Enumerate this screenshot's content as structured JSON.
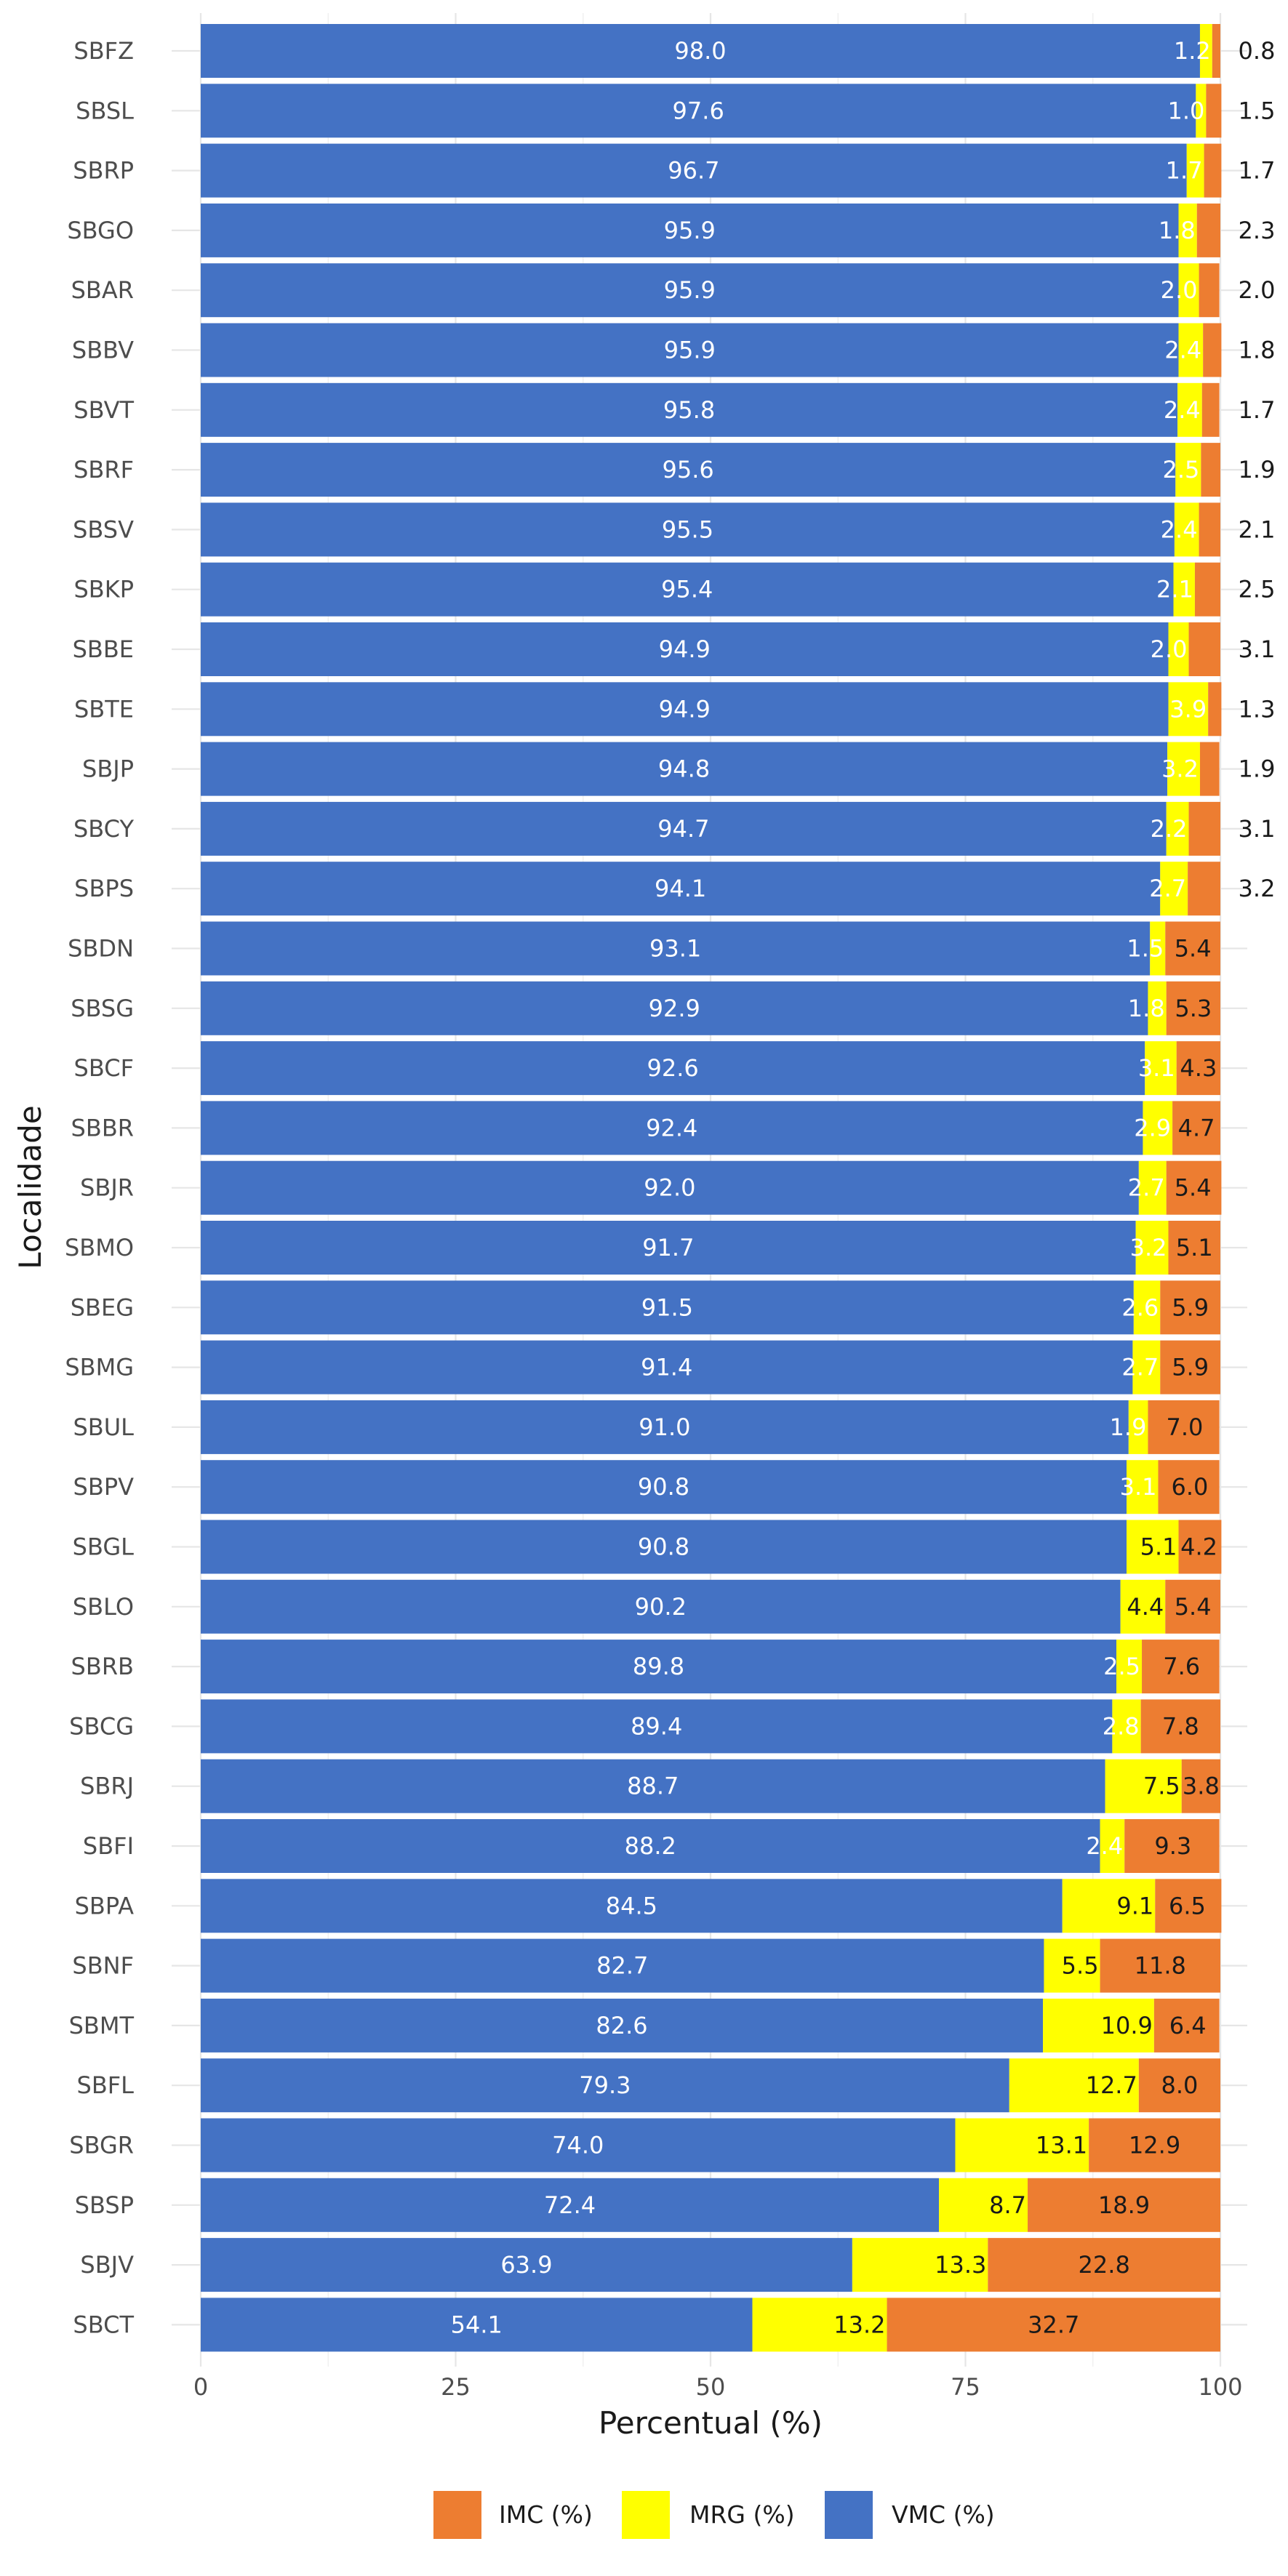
{
  "chart_data": {
    "type": "bar",
    "orientation": "horizontal",
    "stacked": true,
    "title": "",
    "xlabel": "Percentual (%)",
    "ylabel": "Localidade",
    "xlim": [
      0,
      100
    ],
    "xticks": [
      0,
      25,
      50,
      75,
      100
    ],
    "grid": true,
    "legend_position": "bottom",
    "categories": [
      "SBFZ",
      "SBSL",
      "SBRP",
      "SBGO",
      "SBAR",
      "SBBV",
      "SBVT",
      "SBRF",
      "SBSV",
      "SBKP",
      "SBBE",
      "SBTE",
      "SBJP",
      "SBCY",
      "SBPS",
      "SBDN",
      "SBSG",
      "SBCF",
      "SBBR",
      "SBJR",
      "SBMO",
      "SBEG",
      "SBMG",
      "SBUL",
      "SBPV",
      "SBGL",
      "SBLO",
      "SBRB",
      "SBCG",
      "SBRJ",
      "SBFI",
      "SBPA",
      "SBNF",
      "SBMT",
      "SBFL",
      "SBGR",
      "SBSP",
      "SBJV",
      "SBCT"
    ],
    "series": [
      {
        "name": "VMC (%)",
        "color": "#4472C4",
        "label_color": "#ffffff",
        "values": [
          98.0,
          97.6,
          96.7,
          95.9,
          95.9,
          95.9,
          95.8,
          95.6,
          95.5,
          95.4,
          94.9,
          94.9,
          94.8,
          94.7,
          94.1,
          93.1,
          92.9,
          92.6,
          92.4,
          92.0,
          91.7,
          91.5,
          91.4,
          91.0,
          90.8,
          90.8,
          90.2,
          89.8,
          89.4,
          88.7,
          88.2,
          84.5,
          82.7,
          82.6,
          79.3,
          74.0,
          72.4,
          63.9,
          54.1
        ]
      },
      {
        "name": "MRG (%)",
        "color": "#FFFF00",
        "label_color": "#1a1a1a",
        "values": [
          1.2,
          1.0,
          1.7,
          1.8,
          2.0,
          2.4,
          2.4,
          2.5,
          2.4,
          2.1,
          2.0,
          3.9,
          3.2,
          2.2,
          2.7,
          1.5,
          1.8,
          3.1,
          2.9,
          2.7,
          3.2,
          2.6,
          2.7,
          1.9,
          3.1,
          5.1,
          4.4,
          2.5,
          2.8,
          7.5,
          2.4,
          9.1,
          5.5,
          10.9,
          12.7,
          13.1,
          8.7,
          13.3,
          13.2
        ]
      },
      {
        "name": "IMC (%)",
        "color": "#ED7D31",
        "label_color": "#1a1a1a",
        "values": [
          0.8,
          1.5,
          1.7,
          2.3,
          2.0,
          1.8,
          1.7,
          1.9,
          2.1,
          2.5,
          3.1,
          1.3,
          1.9,
          3.1,
          3.2,
          5.4,
          5.3,
          4.3,
          4.7,
          5.4,
          5.1,
          5.9,
          5.9,
          7.0,
          6.0,
          4.2,
          5.4,
          7.6,
          7.8,
          3.8,
          9.3,
          6.5,
          11.8,
          6.4,
          8.0,
          12.9,
          18.9,
          22.8,
          32.7
        ]
      }
    ],
    "legend": [
      "IMC (%)",
      "MRG (%)",
      "VMC (%)"
    ]
  }
}
